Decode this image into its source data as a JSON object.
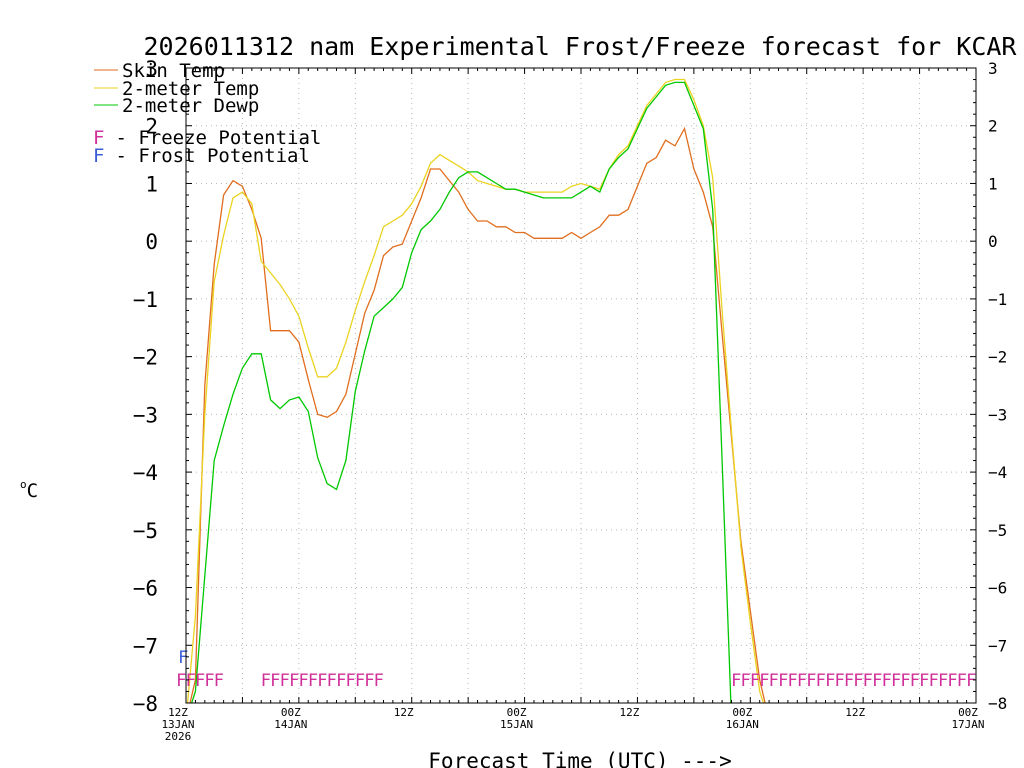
{
  "chart_data": {
    "type": "line",
    "title": "2026011312 nam Experimental Frost/Freeze forecast for KCAR",
    "xlabel": "Forecast Time (UTC) --->",
    "ylabel": "°C",
    "ylabel_parts": {
      "degree": "o",
      "unit": "C"
    },
    "ylim": [
      -8,
      3
    ],
    "xlim_hours": [
      0,
      84
    ],
    "yticks": [
      -8,
      -7,
      -6,
      -5,
      -4,
      -3,
      -2,
      -1,
      0,
      1,
      2,
      3
    ],
    "ytick_labels_left": [
      "−8",
      "−7",
      "−6",
      "−5",
      "−4",
      "−3",
      "−2",
      "−1",
      "0",
      "1",
      "2",
      "3"
    ],
    "ytick_labels_right": [
      "−8",
      "−7",
      "−6",
      "−5",
      "−4",
      "−3",
      "−2",
      "−1",
      "0",
      "1",
      "2",
      "3"
    ],
    "xticks": [
      {
        "hour": 0,
        "lines": [
          "12Z",
          "13JAN",
          "2026"
        ]
      },
      {
        "hour": 12,
        "lines": [
          "00Z",
          "14JAN"
        ]
      },
      {
        "hour": 24,
        "lines": [
          "12Z"
        ]
      },
      {
        "hour": 36,
        "lines": [
          "00Z",
          "15JAN"
        ]
      },
      {
        "hour": 48,
        "lines": [
          "12Z"
        ]
      },
      {
        "hour": 60,
        "lines": [
          "00Z",
          "16JAN"
        ]
      },
      {
        "hour": 72,
        "lines": [
          "12Z"
        ]
      },
      {
        "hour": 84,
        "lines": [
          "00Z",
          "17JAN"
        ]
      }
    ],
    "grid": true,
    "legend_position": "top-left",
    "series": [
      {
        "name": "Skin Temp",
        "color": "#e06e1e",
        "x": [
          0,
          1,
          2,
          3,
          4,
          5,
          6,
          7,
          8,
          9,
          10,
          11,
          12,
          13,
          14,
          15,
          16,
          17,
          18,
          19,
          20,
          21,
          22,
          23,
          24,
          25,
          26,
          27,
          28,
          29,
          30,
          31,
          32,
          33,
          34,
          35,
          36,
          37,
          38,
          39,
          40,
          41,
          42,
          43,
          44,
          45,
          46,
          47,
          48,
          49,
          50,
          51,
          52,
          53,
          54,
          55,
          56,
          57,
          58,
          59,
          60,
          61,
          62
        ],
        "y": [
          -8.3,
          -7.6,
          -2.5,
          -0.4,
          0.8,
          1.05,
          0.95,
          0.55,
          0.05,
          -1.55,
          -1.55,
          -1.55,
          -1.75,
          -2.4,
          -3.0,
          -3.05,
          -2.95,
          -2.65,
          -1.95,
          -1.25,
          -0.85,
          -0.25,
          -0.1,
          -0.05,
          0.35,
          0.75,
          1.25,
          1.25,
          1.05,
          0.85,
          0.55,
          0.35,
          0.35,
          0.25,
          0.25,
          0.15,
          0.15,
          0.05,
          0.05,
          0.05,
          0.05,
          0.15,
          0.05,
          0.15,
          0.25,
          0.45,
          0.45,
          0.55,
          0.95,
          1.35,
          1.45,
          1.75,
          1.65,
          1.95,
          1.25,
          0.85,
          0.25,
          -1.6,
          -3.4,
          -5.2,
          -6.4,
          -7.6,
          -8.3
        ]
      },
      {
        "name": "2-meter Temp",
        "color": "#ebd320",
        "x": [
          0,
          1,
          2,
          3,
          4,
          5,
          6,
          7,
          8,
          9,
          10,
          11,
          12,
          13,
          14,
          15,
          16,
          17,
          18,
          19,
          20,
          21,
          22,
          23,
          24,
          25,
          26,
          27,
          28,
          29,
          30,
          31,
          32,
          33,
          34,
          35,
          36,
          37,
          38,
          39,
          40,
          41,
          42,
          43,
          44,
          45,
          46,
          47,
          48,
          49,
          50,
          51,
          52,
          53,
          54,
          55,
          56,
          57,
          58,
          59,
          60,
          61,
          62
        ],
        "y": [
          -8.3,
          -6.5,
          -3.0,
          -0.7,
          0.1,
          0.75,
          0.85,
          0.65,
          -0.35,
          -0.55,
          -0.75,
          -1.0,
          -1.3,
          -1.85,
          -2.35,
          -2.35,
          -2.2,
          -1.75,
          -1.2,
          -0.7,
          -0.25,
          0.25,
          0.35,
          0.45,
          0.65,
          0.95,
          1.35,
          1.5,
          1.4,
          1.3,
          1.2,
          1.05,
          1.0,
          0.95,
          0.9,
          0.9,
          0.85,
          0.85,
          0.85,
          0.85,
          0.85,
          0.95,
          1.0,
          0.95,
          0.9,
          1.25,
          1.5,
          1.65,
          2.0,
          2.35,
          2.55,
          2.75,
          2.8,
          2.8,
          2.45,
          2.0,
          1.1,
          -1.2,
          -3.3,
          -5.3,
          -6.6,
          -7.8,
          -8.3
        ]
      },
      {
        "name": "2-meter Dewp",
        "color": "#00c800",
        "x": [
          0,
          1,
          2,
          3,
          4,
          5,
          6,
          7,
          8,
          9,
          10,
          11,
          12,
          13,
          14,
          15,
          16,
          17,
          18,
          19,
          20,
          21,
          22,
          23,
          24,
          25,
          26,
          27,
          28,
          29,
          30,
          31,
          32,
          33,
          34,
          35,
          36,
          37,
          38,
          39,
          40,
          41,
          42,
          43,
          44,
          45,
          46,
          47,
          48,
          49,
          50,
          51,
          52,
          53,
          54,
          55,
          56,
          57,
          58,
          59,
          60,
          61,
          62
        ],
        "y": [
          -8.3,
          -7.8,
          -5.8,
          -3.8,
          -3.2,
          -2.65,
          -2.2,
          -1.95,
          -1.95,
          -2.75,
          -2.9,
          -2.75,
          -2.7,
          -2.95,
          -3.75,
          -4.2,
          -4.3,
          -3.8,
          -2.6,
          -1.9,
          -1.3,
          -1.15,
          -1.0,
          -0.8,
          -0.2,
          0.2,
          0.35,
          0.55,
          0.85,
          1.1,
          1.2,
          1.2,
          1.1,
          1.0,
          0.9,
          0.9,
          0.85,
          0.8,
          0.75,
          0.75,
          0.75,
          0.75,
          0.85,
          0.95,
          0.85,
          1.25,
          1.45,
          1.6,
          1.95,
          2.3,
          2.5,
          2.7,
          2.75,
          2.75,
          2.35,
          1.95,
          0.55,
          -3.8,
          -8.3,
          -8.3,
          -8.3,
          -8.3,
          -8.3
        ]
      }
    ],
    "legend_potential": [
      {
        "symbol": "F",
        "text": " - Freeze Potential",
        "color": "#d0309a"
      },
      {
        "symbol": "F",
        "text": " - Frost Potential",
        "color": "#3b5cd8"
      }
    ],
    "freeze_potential_markers": {
      "symbol": "F",
      "color": "#d0309a",
      "level": -7.55,
      "hours": [
        -0.5,
        0.5,
        1.5,
        2.5,
        3.5,
        8.5,
        9.5,
        10.5,
        11.5,
        12.5,
        13.5,
        14.5,
        15.5,
        16.5,
        17.5,
        18.5,
        19.5,
        20.5,
        58.5,
        59.5,
        60.5,
        61.5,
        62.5,
        63.5,
        64.5,
        65.5,
        66.5,
        67.5,
        68.5,
        69.5,
        70.5,
        71.5,
        72.5,
        73.5,
        74.5,
        75.5,
        76.5,
        77.5,
        78.5,
        79.5,
        80.5,
        81.5,
        82.5,
        83.5
      ]
    },
    "frost_potential_markers": {
      "symbol": "F",
      "color": "#3b5cd8",
      "level": -7.15,
      "hours": [
        -0.3
      ]
    }
  }
}
